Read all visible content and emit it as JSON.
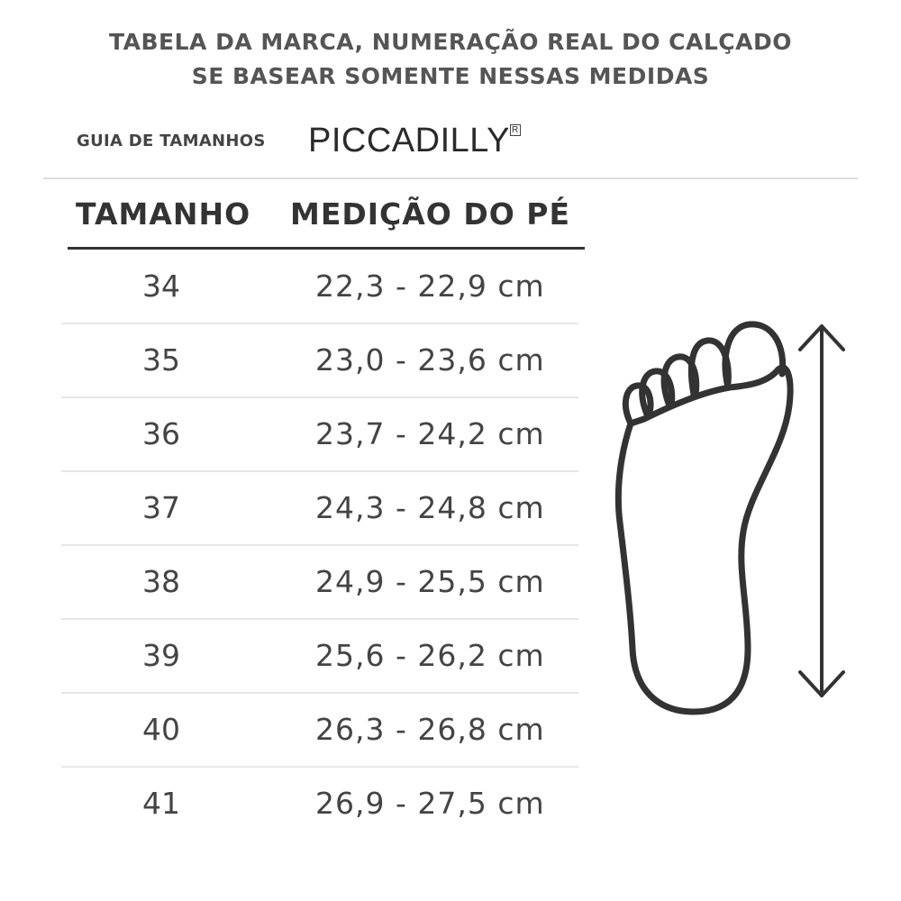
{
  "notice": {
    "line1": "TABELA DA MARCA, NUMERAÇÃO REAL DO CALÇADO",
    "line2": "SE BASEAR SOMENTE NESSAS MEDIDAS"
  },
  "header": {
    "guide_label": "GUIA DE TAMANHOS",
    "brand": "PICCADILLY",
    "brand_mark": "R"
  },
  "table": {
    "columns": [
      "TAMANHO",
      "MEDIÇÃO DO PÉ"
    ],
    "rows": [
      {
        "size": "34",
        "measure": "22,3 - 22,9 cm"
      },
      {
        "size": "35",
        "measure": "23,0 - 23,6 cm"
      },
      {
        "size": "36",
        "measure": "23,7 - 24,2 cm"
      },
      {
        "size": "37",
        "measure": "24,3 - 24,8 cm"
      },
      {
        "size": "38",
        "measure": "24,9 - 25,5 cm"
      },
      {
        "size": "39",
        "measure": "25,6 - 26,2 cm"
      },
      {
        "size": "40",
        "measure": "26,3 - 26,8 cm"
      },
      {
        "size": "41",
        "measure": "26,9 - 27,5 cm"
      }
    ]
  },
  "illustration": {
    "icon": "foot-outline-icon",
    "arrow": "double-arrow-vertical-icon",
    "color": "#333333"
  }
}
